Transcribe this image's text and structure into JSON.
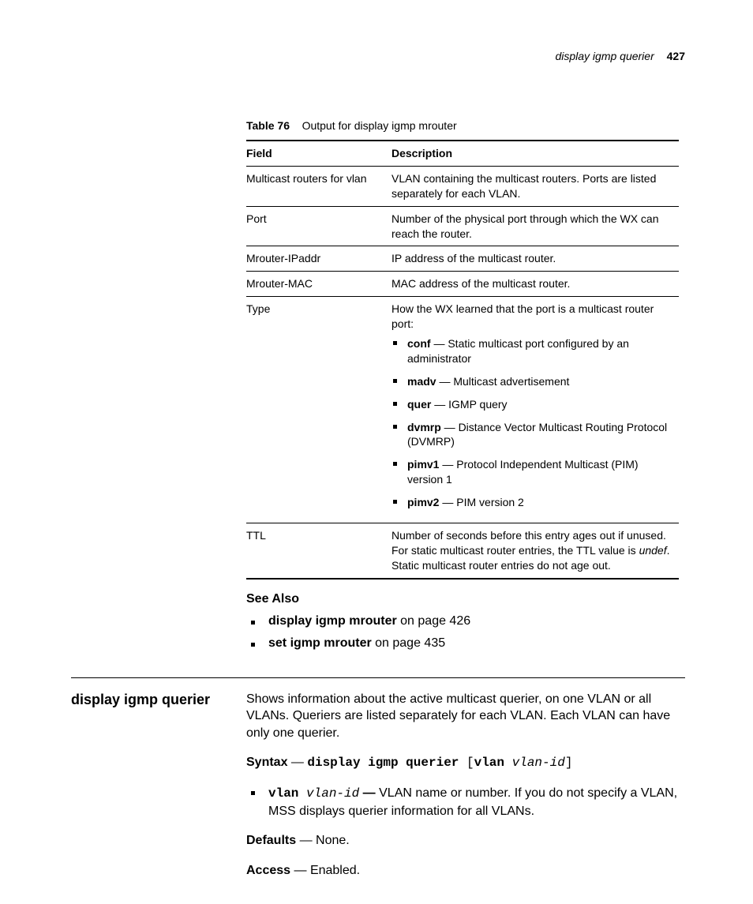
{
  "header": {
    "title": "display igmp querier",
    "page": "427"
  },
  "table": {
    "caption_label": "Table 76",
    "caption_text": "Output for display igmp mrouter",
    "head_field": "Field",
    "head_desc": "Description",
    "rows": {
      "r0": {
        "field": "Multicast routers for vlan",
        "desc": "VLAN containing the multicast routers. Ports are listed separately for each VLAN."
      },
      "r1": {
        "field": "Port",
        "desc": "Number of the physical port through which the WX can reach the router."
      },
      "r2": {
        "field": "Mrouter-IPaddr",
        "desc": "IP address of the multicast router."
      },
      "r3": {
        "field": "Mrouter-MAC",
        "desc": "MAC address of the multicast router."
      },
      "r4": {
        "field": "Type",
        "intro": "How the WX learned that the port is a multicast router port:",
        "items": {
          "i0": {
            "term": "conf",
            "desc": " — Static multicast port configured by an administrator"
          },
          "i1": {
            "term": "madv",
            "desc": " — Multicast advertisement"
          },
          "i2": {
            "term": "quer",
            "desc": " — IGMP query"
          },
          "i3": {
            "term": "dvmrp",
            "desc": " — Distance Vector Multicast Routing Protocol (DVMRP)"
          },
          "i4": {
            "term": "pimv1",
            "desc": " — Protocol Independent Multicast (PIM) version 1"
          },
          "i5": {
            "term": "pimv2",
            "desc": " — PIM version 2"
          }
        }
      },
      "r5": {
        "field": "TTL",
        "pre": "Number of seconds before this entry ages out if unused. For static multicast router entries, the TTL value is ",
        "ital": "undef",
        "post": ". Static multicast router entries do not age out."
      }
    }
  },
  "see_also": {
    "heading": "See Also",
    "items": {
      "s0": {
        "cmd": "display igmp mrouter",
        "rest": " on page 426"
      },
      "s1": {
        "cmd": "set igmp mrouter",
        "rest": " on page 435"
      }
    }
  },
  "command": {
    "name": "display igmp querier",
    "summary": "Shows information about the active multicast querier, on one VLAN or all VLANs. Queriers are listed separately for each VLAN. Each VLAN can have only one querier.",
    "syntax_label": "Syntax",
    "syntax_dash": " — ",
    "syntax_cmd": "display igmp querier",
    "syntax_open": " [",
    "syntax_kw": "vlan",
    "syntax_sp": " ",
    "syntax_arg": "vlan-id",
    "syntax_close": "]",
    "param": {
      "kw": "vlan",
      "sp": " ",
      "arg": "vlan-id",
      "dash": " — ",
      "desc": "VLAN name or number. If you do not specify a VLAN, MSS displays querier information for all VLANs."
    },
    "defaults_label": "Defaults",
    "defaults_value": " — None.",
    "access_label": "Access",
    "access_value": " — Enabled."
  }
}
